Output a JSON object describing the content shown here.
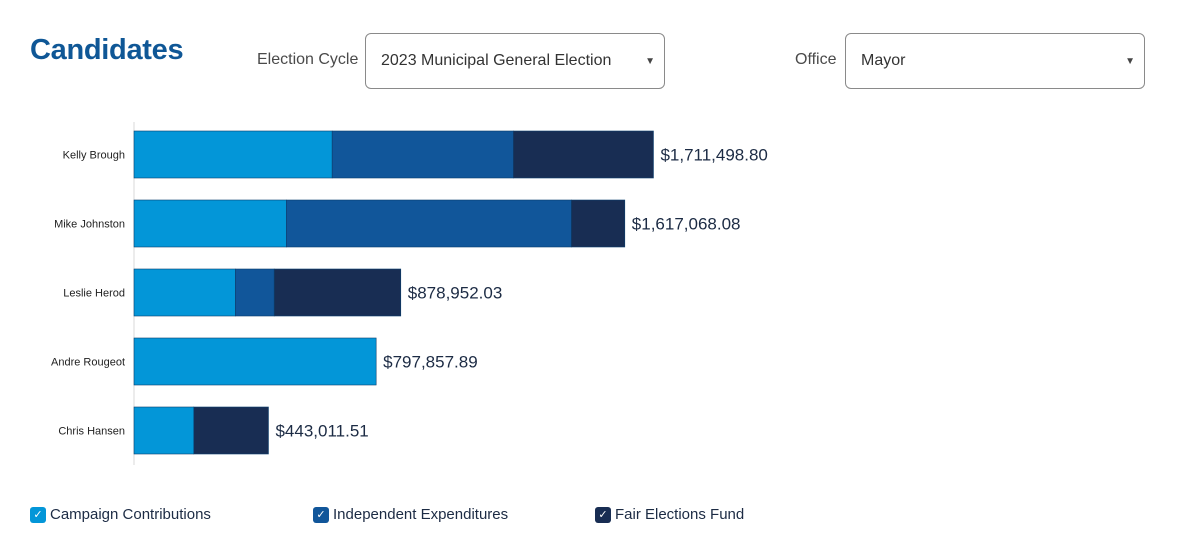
{
  "header": {
    "title": "Candidates",
    "election_cycle_label": "Election Cycle",
    "election_cycle_value": "2023 Municipal General Election",
    "office_label": "Office",
    "office_value": "Mayor"
  },
  "colors": {
    "campaign_contributions": "#0396d8",
    "independent_expenditures": "#11569a",
    "fair_elections_fund": "#182d53",
    "title": "#0f5796"
  },
  "legend": [
    {
      "label": "Campaign Contributions",
      "color": "#0396d8",
      "checked": true
    },
    {
      "label": "Independent Expenditures",
      "color": "#11569a",
      "checked": true
    },
    {
      "label": "Fair Elections Fund",
      "color": "#182d53",
      "checked": true
    }
  ],
  "chart_data": {
    "type": "bar",
    "orientation": "horizontal",
    "stacked": true,
    "title": "",
    "xlabel": "",
    "ylabel": "",
    "categories": [
      "Kelly Brough",
      "Mike Johnston",
      "Leslie Herod",
      "Andre Rougeot",
      "Chris Hansen"
    ],
    "series": [
      {
        "name": "Campaign Contributions",
        "values": [
          653000,
          502000,
          334000,
          797857.89,
          197000
        ]
      },
      {
        "name": "Independent Expenditures",
        "values": [
          597000,
          939000,
          128000,
          0,
          0
        ]
      },
      {
        "name": "Fair Elections Fund",
        "values": [
          461498.8,
          176068.08,
          416952.03,
          0,
          246011.51
        ]
      }
    ],
    "totals": [
      "$1,711,498.80",
      "$1,617,068.08",
      "$878,952.03",
      "$797,857.89",
      "$443,011.51"
    ],
    "xlim": [
      0,
      1911000
    ],
    "grid": false,
    "legend_position": "bottom"
  }
}
